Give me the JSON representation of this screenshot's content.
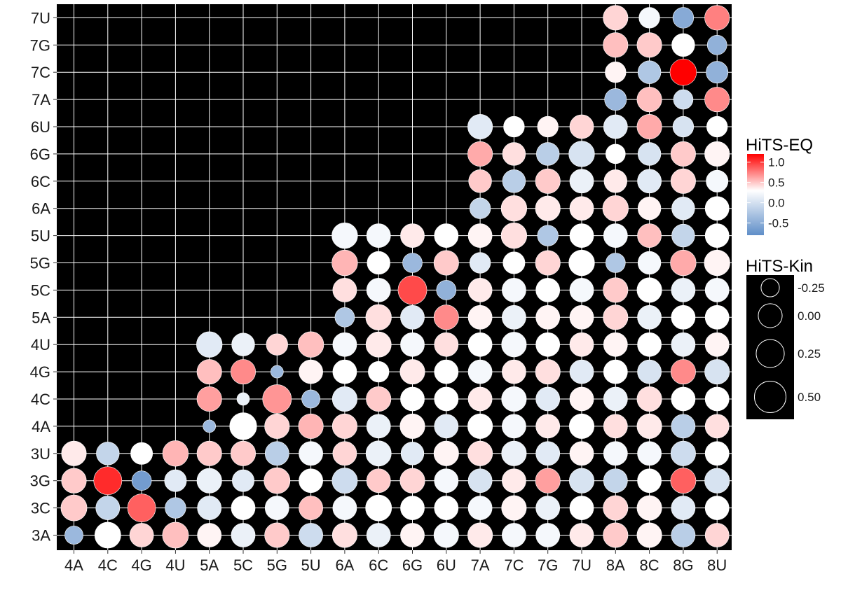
{
  "chart_data": {
    "type": "scatter",
    "subtype": "bubble-grid",
    "title": "",
    "xlabel": "",
    "ylabel": "",
    "x_categories": [
      "4A",
      "4C",
      "4G",
      "4U",
      "5A",
      "5C",
      "5G",
      "5U",
      "6A",
      "6C",
      "6G",
      "6U",
      "7A",
      "7C",
      "7G",
      "7U",
      "8A",
      "8C",
      "8G",
      "8U"
    ],
    "y_categories": [
      "3A",
      "3C",
      "3G",
      "3U",
      "4A",
      "4C",
      "4G",
      "4U",
      "5A",
      "5C",
      "5G",
      "5U",
      "6A",
      "6C",
      "6G",
      "6U",
      "7A",
      "7C",
      "7G",
      "7U"
    ],
    "y_col_start": [
      0,
      0,
      0,
      0,
      4,
      4,
      4,
      4,
      8,
      8,
      8,
      8,
      12,
      12,
      12,
      12,
      16,
      16,
      16,
      16
    ],
    "panel_background": "#000000",
    "grid": true,
    "grid_color": "#ffffff",
    "eq_values": [
      [
        -0.5,
        0.0,
        0.2,
        0.3,
        0.05,
        -0.1,
        0.25,
        -0.25,
        0.15,
        -0.1,
        0.05,
        -0.05,
        0.1,
        -0.05,
        -0.05,
        0.1,
        0.25,
        0.05,
        -0.35,
        0.2
      ],
      [
        0.25,
        -0.3,
        0.75,
        -0.4,
        -0.15,
        0.0,
        -0.05,
        0.3,
        -0.05,
        0.0,
        0.0,
        0.0,
        -0.05,
        0.05,
        -0.1,
        0.0,
        0.2,
        0.05,
        -0.15,
        0.0
      ],
      [
        0.25,
        1.0,
        -0.7,
        -0.15,
        -0.1,
        -0.15,
        0.25,
        0.0,
        -0.25,
        0.25,
        0.2,
        -0.05,
        -0.2,
        0.1,
        0.45,
        -0.2,
        -0.3,
        0.0,
        0.75,
        -0.2
      ],
      [
        0.1,
        -0.3,
        0.0,
        0.35,
        0.25,
        0.25,
        -0.35,
        -0.05,
        0.2,
        -0.1,
        -0.15,
        0.05,
        0.15,
        -0.1,
        -0.15,
        0.05,
        -0.05,
        -0.05,
        -0.25,
        0.0
      ],
      [
        null,
        null,
        null,
        null,
        -0.5,
        0.0,
        0.2,
        0.35,
        0.2,
        -0.1,
        0.05,
        -0.15,
        0.0,
        -0.05,
        0.1,
        0.0,
        0.15,
        0.1,
        -0.35,
        0.15
      ],
      [
        null,
        null,
        null,
        null,
        0.45,
        -0.1,
        0.5,
        -0.5,
        -0.15,
        0.25,
        0.0,
        0.0,
        0.1,
        -0.05,
        -0.15,
        0.05,
        -0.1,
        0.15,
        0.0,
        0.0
      ],
      [
        null,
        null,
        null,
        null,
        0.3,
        0.55,
        -0.5,
        0.05,
        0.0,
        0.0,
        0.1,
        0.0,
        -0.05,
        0.1,
        0.15,
        -0.15,
        0.0,
        -0.2,
        0.55,
        -0.2
      ],
      [
        null,
        null,
        null,
        null,
        -0.15,
        -0.1,
        0.2,
        0.3,
        -0.05,
        0.1,
        -0.05,
        0.15,
        0.0,
        -0.05,
        0.0,
        0.1,
        0.05,
        0.0,
        -0.1,
        0.05
      ],
      [
        null,
        null,
        null,
        null,
        null,
        null,
        null,
        null,
        -0.4,
        0.15,
        -0.15,
        0.55,
        0.05,
        -0.1,
        0.05,
        0.05,
        0.2,
        -0.1,
        0.0,
        0.0
      ],
      [
        null,
        null,
        null,
        null,
        null,
        null,
        null,
        null,
        0.15,
        -0.05,
        0.85,
        -0.55,
        0.1,
        -0.05,
        0.0,
        -0.05,
        0.25,
        0.0,
        -0.1,
        -0.05
      ],
      [
        null,
        null,
        null,
        null,
        null,
        null,
        null,
        null,
        0.35,
        0.0,
        -0.5,
        0.25,
        -0.15,
        0.0,
        0.2,
        0.0,
        -0.4,
        -0.05,
        0.4,
        0.05
      ],
      [
        null,
        null,
        null,
        null,
        null,
        null,
        null,
        null,
        -0.05,
        -0.05,
        0.1,
        0.0,
        0.05,
        0.15,
        -0.4,
        0.0,
        -0.05,
        0.3,
        -0.3,
        0.0
      ],
      [
        null,
        null,
        null,
        null,
        null,
        null,
        null,
        null,
        null,
        null,
        null,
        null,
        -0.3,
        0.15,
        0.1,
        0.1,
        0.2,
        0.05,
        -0.15,
        0.0
      ],
      [
        null,
        null,
        null,
        null,
        null,
        null,
        null,
        null,
        null,
        null,
        null,
        null,
        0.25,
        -0.35,
        0.25,
        -0.1,
        0.1,
        -0.15,
        0.2,
        -0.05
      ],
      [
        null,
        null,
        null,
        null,
        null,
        null,
        null,
        null,
        null,
        null,
        null,
        null,
        0.4,
        0.15,
        -0.35,
        -0.2,
        0.0,
        -0.2,
        0.25,
        0.05
      ],
      [
        null,
        null,
        null,
        null,
        null,
        null,
        null,
        null,
        null,
        null,
        null,
        null,
        -0.15,
        0.0,
        0.05,
        0.2,
        -0.15,
        0.4,
        -0.2,
        0.0
      ],
      [
        null,
        null,
        null,
        null,
        null,
        null,
        null,
        null,
        null,
        null,
        null,
        null,
        null,
        null,
        null,
        null,
        -0.5,
        0.3,
        -0.25,
        0.55
      ],
      [
        null,
        null,
        null,
        null,
        null,
        null,
        null,
        null,
        null,
        null,
        null,
        null,
        null,
        null,
        null,
        null,
        0.05,
        -0.4,
        1.2,
        -0.55
      ],
      [
        null,
        null,
        null,
        null,
        null,
        null,
        null,
        null,
        null,
        null,
        null,
        null,
        null,
        null,
        null,
        null,
        0.3,
        0.25,
        0.0,
        -0.55
      ],
      [
        null,
        null,
        null,
        null,
        null,
        null,
        null,
        null,
        null,
        null,
        null,
        null,
        null,
        null,
        null,
        null,
        0.2,
        -0.05,
        -0.6,
        0.6
      ]
    ],
    "kin_values": [
      [
        -0.25,
        0.12,
        0.0,
        0.12,
        0.0,
        0.0,
        0.05,
        0.0,
        0.05,
        0.0,
        0.0,
        0.05,
        0.05,
        0.0,
        0.0,
        0.0,
        0.05,
        0.05,
        0.0,
        0.0
      ],
      [
        0.12,
        0.0,
        0.25,
        -0.15,
        0.0,
        0.0,
        0.0,
        0.0,
        0.0,
        0.12,
        0.0,
        0.0,
        0.0,
        0.05,
        0.0,
        0.0,
        0.05,
        0.05,
        0.0,
        0.0
      ],
      [
        0.05,
        0.25,
        -0.2,
        -0.1,
        0.05,
        -0.1,
        0.12,
        0.0,
        0.08,
        0.0,
        0.05,
        0.0,
        0.0,
        0.0,
        0.05,
        0.05,
        0.0,
        0.0,
        0.08,
        0.05
      ],
      [
        0.05,
        -0.05,
        -0.1,
        0.1,
        0.05,
        0.05,
        0.0,
        0.0,
        0.0,
        0.08,
        -0.05,
        0.05,
        0.05,
        0.05,
        0.0,
        0.0,
        0.0,
        0.0,
        0.05,
        0.0
      ],
      [
        null,
        null,
        null,
        null,
        -0.4,
        0.18,
        0.05,
        0.05,
        0.05,
        0.0,
        0.05,
        0.0,
        0.05,
        0.0,
        0.0,
        0.05,
        0.0,
        0.05,
        0.0,
        0.0
      ],
      [
        null,
        null,
        null,
        null,
        0.05,
        -0.4,
        0.3,
        -0.25,
        0.05,
        0.05,
        0.0,
        0.0,
        0.0,
        0.05,
        0.0,
        0.0,
        0.0,
        0.05,
        0.0,
        0.0
      ],
      [
        null,
        null,
        null,
        null,
        0.05,
        0.05,
        -0.4,
        0.0,
        0.0,
        -0.15,
        0.05,
        0.0,
        0.0,
        0.0,
        0.05,
        0.0,
        0.0,
        0.0,
        0.05,
        0.05
      ],
      [
        null,
        null,
        null,
        null,
        0.1,
        -0.05,
        -0.12,
        0.1,
        0.0,
        0.08,
        0.0,
        0.0,
        0.0,
        0.05,
        0.0,
        0.0,
        0.0,
        0.0,
        0.0,
        0.0
      ],
      [
        null,
        null,
        null,
        null,
        null,
        null,
        null,
        null,
        -0.2,
        0.1,
        0.0,
        0.05,
        0.0,
        0.0,
        0.0,
        0.0,
        0.05,
        0.0,
        0.0,
        0.0
      ],
      [
        null,
        null,
        null,
        null,
        null,
        null,
        null,
        null,
        0.0,
        0.0,
        0.3,
        -0.2,
        0.0,
        0.0,
        0.0,
        0.0,
        0.05,
        0.05,
        0.0,
        0.0
      ],
      [
        null,
        null,
        null,
        null,
        null,
        null,
        null,
        null,
        0.1,
        -0.05,
        -0.2,
        0.05,
        -0.15,
        -0.1,
        0.05,
        0.1,
        -0.2,
        -0.05,
        0.1,
        0.1
      ],
      [
        null,
        null,
        null,
        null,
        null,
        null,
        null,
        null,
        0.1,
        0.0,
        0.0,
        0.0,
        0.0,
        0.1,
        -0.15,
        0.0,
        0.0,
        0.0,
        -0.05,
        0.0
      ],
      [
        null,
        null,
        null,
        null,
        null,
        null,
        null,
        null,
        null,
        null,
        null,
        null,
        -0.15,
        0.1,
        0.05,
        0.0,
        0.1,
        -0.05,
        -0.05,
        0.0
      ],
      [
        null,
        null,
        null,
        null,
        null,
        null,
        null,
        null,
        null,
        null,
        null,
        null,
        -0.05,
        -0.05,
        0.05,
        0.0,
        -0.05,
        0.0,
        0.05,
        -0.1
      ],
      [
        null,
        null,
        null,
        null,
        null,
        null,
        null,
        null,
        null,
        null,
        null,
        null,
        0.05,
        -0.05,
        -0.05,
        0.1,
        -0.2,
        -0.05,
        0.05,
        0.05
      ],
      [
        null,
        null,
        null,
        null,
        null,
        null,
        null,
        null,
        null,
        null,
        null,
        null,
        0.05,
        -0.15,
        -0.15,
        0.0,
        0.0,
        0.05,
        -0.15,
        -0.15
      ],
      [
        null,
        null,
        null,
        null,
        null,
        null,
        null,
        null,
        null,
        null,
        null,
        null,
        null,
        null,
        null,
        null,
        -0.1,
        0.05,
        -0.2,
        0.05
      ],
      [
        null,
        null,
        null,
        null,
        null,
        null,
        null,
        null,
        null,
        null,
        null,
        null,
        null,
        null,
        null,
        null,
        -0.15,
        -0.05,
        0.15,
        -0.1
      ],
      [
        null,
        null,
        null,
        null,
        null,
        null,
        null,
        null,
        null,
        null,
        null,
        null,
        null,
        null,
        null,
        null,
        0.05,
        0.05,
        -0.05,
        -0.2
      ],
      [
        null,
        null,
        null,
        null,
        null,
        null,
        null,
        null,
        null,
        null,
        null,
        null,
        null,
        null,
        null,
        null,
        0.05,
        -0.15,
        -0.15,
        0.05
      ]
    ],
    "color_scale": {
      "title": "HiTS-EQ",
      "domain": [
        -0.8,
        1.2
      ],
      "low_color": "#5f8ec8",
      "mid_color": "#ffffff",
      "high_color": "#ff0000",
      "breaks": [
        1.0,
        0.5,
        0.0,
        -0.5
      ],
      "labels": [
        "1.0",
        "0.5",
        "0.0",
        "-0.5"
      ]
    },
    "size_scale": {
      "title": "HiTS-Kin",
      "domain": [
        -0.45,
        0.55
      ],
      "breaks": [
        -0.25,
        0.0,
        0.25,
        0.5
      ],
      "labels": [
        "-0.25",
        "0.00",
        "0.25",
        "0.50"
      ]
    }
  }
}
